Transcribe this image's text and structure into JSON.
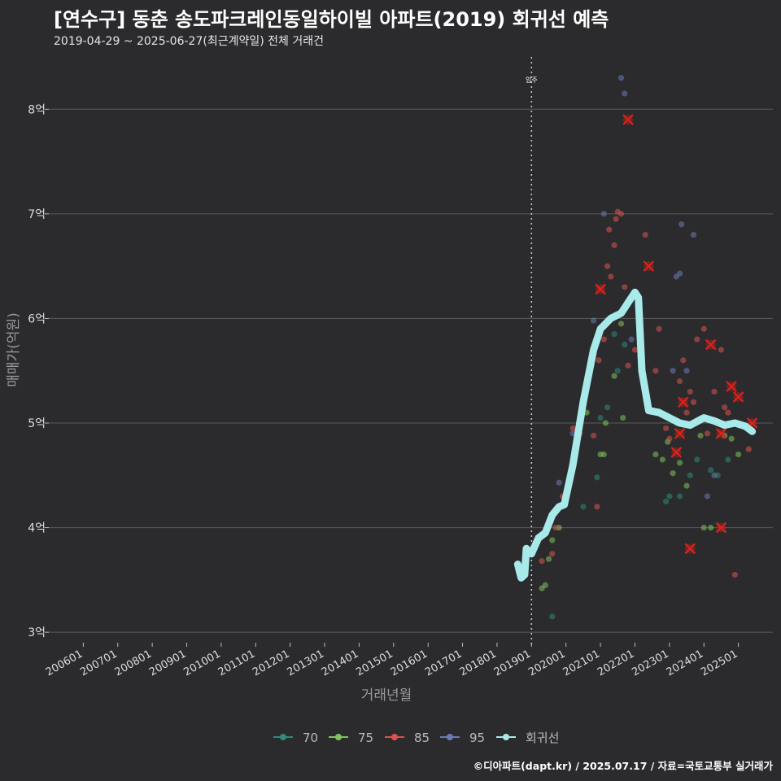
{
  "header": {
    "title": "[연수구] 동춘 송도파크레인동일하이빌 아파트(2019) 회귀선 예측",
    "subtitle": "2019-04-29 ~ 2025-06-27(최근계약일) 전체 거래건"
  },
  "footer": {
    "credit": "©디아파트(dapt.kr) / 2025.07.17 / 자료=국토교통부 실거래가"
  },
  "colors": {
    "background": "#2b2b2d",
    "grid": "#5a5a5a",
    "s70": "#2e8b7a",
    "s75": "#7fc45a",
    "s85": "#d9534f",
    "s95": "#6a7ab5",
    "regression": "#a8eaea",
    "highlight": "#e0201a"
  },
  "chart_data": {
    "type": "scatter",
    "xlabel": "거래년월",
    "ylabel": "매매가(억원)",
    "ylim": [
      2.9,
      8.5
    ],
    "xlim": [
      2005.0,
      2026.0
    ],
    "yticks": [
      3,
      4,
      5,
      6,
      7,
      8
    ],
    "ytick_labels": [
      "3억",
      "4억",
      "5억",
      "6억",
      "7억",
      "8억"
    ],
    "xticks": [
      2006,
      2007,
      2008,
      2009,
      2010,
      2011,
      2012,
      2013,
      2014,
      2015,
      2016,
      2017,
      2018,
      2019,
      2020,
      2021,
      2022,
      2023,
      2024,
      2025
    ],
    "xtick_labels": [
      "200601",
      "200701",
      "200801",
      "200901",
      "201001",
      "201101",
      "201201",
      "201301",
      "201401",
      "201501",
      "201601",
      "201701",
      "201801",
      "201901",
      "202001",
      "202101",
      "202201",
      "202301",
      "202401",
      "202501"
    ],
    "vline": {
      "x": 2019.0,
      "label": "입주"
    },
    "legend": {
      "position": "bottom",
      "items": [
        {
          "key": "s70",
          "label": "70"
        },
        {
          "key": "s75",
          "label": "75"
        },
        {
          "key": "s85",
          "label": "85"
        },
        {
          "key": "s95",
          "label": "95"
        },
        {
          "key": "regression",
          "label": "회귀선"
        }
      ]
    },
    "series": [
      {
        "name": "70",
        "color_key": "s70",
        "points": [
          [
            2019.6,
            3.15
          ],
          [
            2020.5,
            4.2
          ],
          [
            2020.9,
            4.48
          ],
          [
            2021.0,
            5.05
          ],
          [
            2021.2,
            5.15
          ],
          [
            2021.4,
            5.85
          ],
          [
            2021.5,
            5.5
          ],
          [
            2021.7,
            5.75
          ],
          [
            2022.9,
            4.25
          ],
          [
            2023.0,
            4.3
          ],
          [
            2023.3,
            4.3
          ],
          [
            2023.6,
            4.5
          ],
          [
            2023.8,
            4.65
          ],
          [
            2024.2,
            4.55
          ],
          [
            2024.4,
            4.5
          ],
          [
            2024.7,
            4.65
          ]
        ]
      },
      {
        "name": "75",
        "color_key": "s75",
        "points": [
          [
            2019.3,
            3.42
          ],
          [
            2019.4,
            3.45
          ],
          [
            2019.5,
            3.7
          ],
          [
            2019.6,
            3.88
          ],
          [
            2019.8,
            4.0
          ],
          [
            2020.3,
            4.78
          ],
          [
            2020.6,
            5.1
          ],
          [
            2021.0,
            4.7
          ],
          [
            2021.1,
            4.7
          ],
          [
            2021.15,
            5.0
          ],
          [
            2021.4,
            5.45
          ],
          [
            2021.6,
            5.95
          ],
          [
            2021.65,
            5.05
          ],
          [
            2022.6,
            4.7
          ],
          [
            2022.8,
            4.65
          ],
          [
            2022.95,
            4.82
          ],
          [
            2023.1,
            4.52
          ],
          [
            2023.3,
            4.62
          ],
          [
            2023.5,
            4.4
          ],
          [
            2023.9,
            4.88
          ],
          [
            2024.0,
            4.0
          ],
          [
            2024.2,
            4.0
          ],
          [
            2024.6,
            4.88
          ],
          [
            2024.8,
            4.85
          ],
          [
            2025.0,
            4.7
          ]
        ]
      },
      {
        "name": "85",
        "color_key": "s85",
        "points": [
          [
            2019.3,
            3.68
          ],
          [
            2019.6,
            3.75
          ],
          [
            2019.7,
            4.0
          ],
          [
            2019.9,
            4.3
          ],
          [
            2020.2,
            4.95
          ],
          [
            2020.4,
            4.9
          ],
          [
            2020.8,
            4.88
          ],
          [
            2020.9,
            4.2
          ],
          [
            2020.95,
            5.6
          ],
          [
            2021.1,
            5.8
          ],
          [
            2021.2,
            6.5
          ],
          [
            2021.25,
            6.85
          ],
          [
            2021.3,
            6.4
          ],
          [
            2021.4,
            6.7
          ],
          [
            2021.45,
            6.95
          ],
          [
            2021.5,
            7.02
          ],
          [
            2021.6,
            7.0
          ],
          [
            2021.7,
            6.3
          ],
          [
            2021.8,
            5.55
          ],
          [
            2022.0,
            5.7
          ],
          [
            2022.3,
            6.8
          ],
          [
            2022.6,
            5.5
          ],
          [
            2022.7,
            5.9
          ],
          [
            2022.9,
            4.95
          ],
          [
            2023.0,
            4.85
          ],
          [
            2023.2,
            5.0
          ],
          [
            2023.3,
            5.4
          ],
          [
            2023.4,
            5.6
          ],
          [
            2023.5,
            5.1
          ],
          [
            2023.6,
            5.3
          ],
          [
            2023.7,
            5.2
          ],
          [
            2023.8,
            5.8
          ],
          [
            2024.0,
            5.9
          ],
          [
            2024.1,
            4.9
          ],
          [
            2024.3,
            5.3
          ],
          [
            2024.5,
            5.7
          ],
          [
            2024.6,
            5.15
          ],
          [
            2024.7,
            5.1
          ],
          [
            2024.9,
            3.55
          ],
          [
            2025.3,
            4.75
          ]
        ]
      },
      {
        "name": "95",
        "color_key": "s95",
        "points": [
          [
            2019.8,
            4.43
          ],
          [
            2020.2,
            4.9
          ],
          [
            2020.8,
            5.98
          ],
          [
            2021.1,
            7.0
          ],
          [
            2021.6,
            8.3
          ],
          [
            2021.7,
            8.15
          ],
          [
            2021.9,
            5.8
          ],
          [
            2023.1,
            5.5
          ],
          [
            2023.2,
            6.4
          ],
          [
            2023.3,
            6.43
          ],
          [
            2023.35,
            6.9
          ],
          [
            2023.5,
            5.5
          ],
          [
            2023.7,
            6.8
          ],
          [
            2024.1,
            4.3
          ],
          [
            2024.3,
            4.5
          ]
        ]
      }
    ],
    "highlights": [
      [
        2021.0,
        6.28
      ],
      [
        2021.8,
        7.9
      ],
      [
        2022.4,
        6.5
      ],
      [
        2023.4,
        5.2
      ],
      [
        2023.3,
        4.9
      ],
      [
        2023.2,
        4.72
      ],
      [
        2023.6,
        3.8
      ],
      [
        2024.2,
        5.75
      ],
      [
        2024.5,
        4.0
      ],
      [
        2024.8,
        5.35
      ],
      [
        2025.0,
        5.25
      ],
      [
        2025.4,
        5.0
      ],
      [
        2024.5,
        4.9
      ]
    ],
    "regression": [
      [
        2018.6,
        3.65
      ],
      [
        2018.7,
        3.52
      ],
      [
        2018.8,
        3.55
      ],
      [
        2018.85,
        3.8
      ],
      [
        2019.0,
        3.75
      ],
      [
        2019.2,
        3.9
      ],
      [
        2019.4,
        3.95
      ],
      [
        2019.6,
        4.12
      ],
      [
        2019.8,
        4.2
      ],
      [
        2019.95,
        4.22
      ],
      [
        2020.2,
        4.6
      ],
      [
        2020.5,
        5.2
      ],
      [
        2020.8,
        5.7
      ],
      [
        2021.0,
        5.9
      ],
      [
        2021.3,
        6.0
      ],
      [
        2021.6,
        6.05
      ],
      [
        2021.8,
        6.15
      ],
      [
        2022.0,
        6.25
      ],
      [
        2022.1,
        6.2
      ],
      [
        2022.2,
        5.5
      ],
      [
        2022.4,
        5.12
      ],
      [
        2022.7,
        5.1
      ],
      [
        2023.0,
        5.05
      ],
      [
        2023.3,
        5.0
      ],
      [
        2023.6,
        4.98
      ],
      [
        2024.0,
        5.05
      ],
      [
        2024.3,
        5.02
      ],
      [
        2024.6,
        4.98
      ],
      [
        2024.9,
        5.0
      ],
      [
        2025.2,
        4.97
      ],
      [
        2025.4,
        4.92
      ]
    ]
  }
}
